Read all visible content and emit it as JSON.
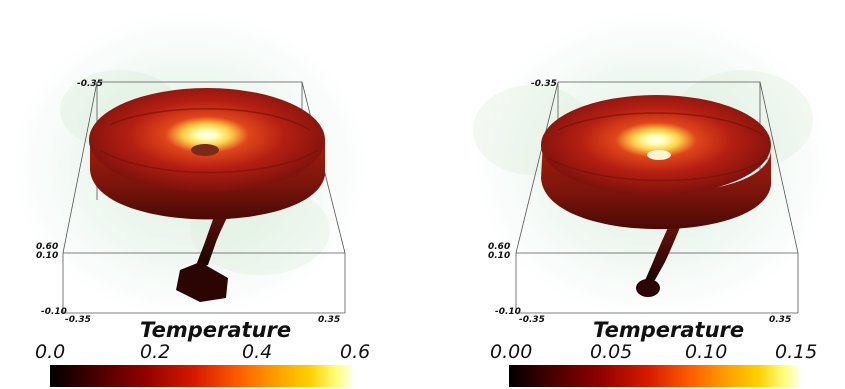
{
  "panels": [
    {
      "axes": {
        "z_top": "-0.35",
        "y_upper": "0.60",
        "y_lower": "0.10",
        "x_corner": "-0.10",
        "x_left": "-0.35",
        "x_right": "0.35"
      },
      "colorbar": {
        "title": "Temperature",
        "ticks": [
          "0.0",
          "0.2",
          "0.4",
          "0.6"
        ],
        "min": 0.0,
        "max": 0.6
      }
    },
    {
      "axes": {
        "z_top": "-0.35",
        "y_upper": "0.60",
        "y_lower": "0.10",
        "x_corner": "-0.10",
        "x_left": "-0.35",
        "x_right": "0.35"
      },
      "colorbar": {
        "title": "Temperature",
        "ticks": [
          "0.00",
          "0.05",
          "0.10",
          "0.15"
        ],
        "min": 0.0,
        "max": 0.15
      }
    }
  ]
}
